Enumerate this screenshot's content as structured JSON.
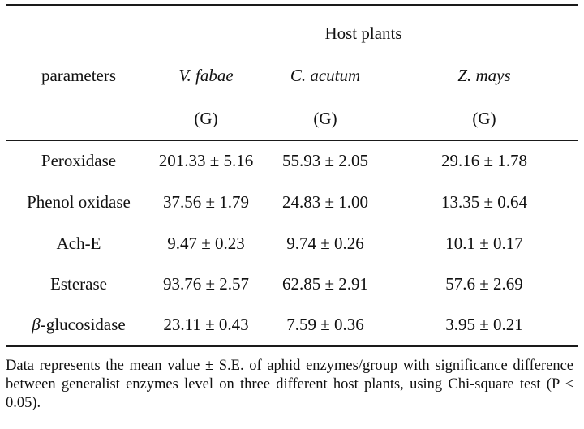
{
  "table": {
    "group_header": "Host plants",
    "param_header": "parameters",
    "columns": [
      {
        "name": "V. fabae",
        "unit": "(G)"
      },
      {
        "name": "C. acutum",
        "unit": "(G)"
      },
      {
        "name": "Z. mays",
        "unit": "(G)"
      }
    ],
    "rows": [
      {
        "param": "Peroxidase",
        "values": [
          "201.33 ± 5.16",
          "55.93 ± 2.05",
          "29.16 ± 1.78"
        ]
      },
      {
        "param": "Phenol oxidase",
        "values": [
          "37.56 ± 1.79",
          "24.83 ± 1.00",
          "13.35 ± 0.64"
        ]
      },
      {
        "param": "Ach-E",
        "values": [
          "9.47 ± 0.23",
          "9.74 ± 0.26",
          "10.1 ± 0.17"
        ]
      },
      {
        "param": "Esterase",
        "values": [
          "93.76 ± 2.57",
          "62.85 ± 2.91",
          "57.6 ± 2.69"
        ]
      },
      {
        "param_prefix": "β",
        "param_suffix": "-glucosidase",
        "values": [
          "23.11 ± 0.43",
          "7.59 ± 0.36",
          "3.95 ± 0.21"
        ]
      }
    ],
    "footnote": "Data represents the mean value ± S.E. of aphid enzymes/group with significance difference between generalist enzymes level on three different host plants, using Chi-square test (P ≤ 0.05)."
  }
}
